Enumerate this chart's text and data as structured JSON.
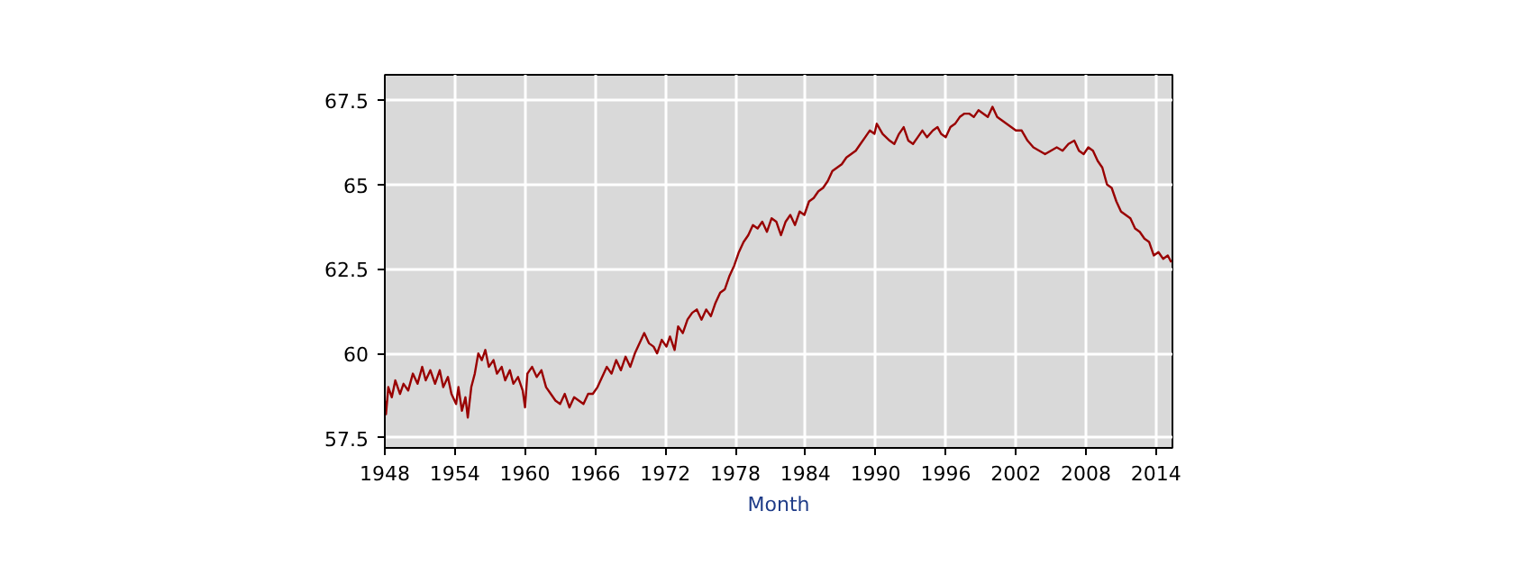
{
  "chart_data": {
    "type": "line",
    "xlabel": "Month",
    "xlim": [
      1948,
      2015.4
    ],
    "ylim": [
      57.2,
      68.25
    ],
    "xticks": [
      1948,
      1954,
      1960,
      1966,
      1972,
      1978,
      1984,
      1990,
      1996,
      2002,
      2008,
      2014
    ],
    "yticks": [
      57.5,
      60,
      62.5,
      65,
      67.5
    ],
    "grid": true,
    "marker": "none",
    "line_style": "solid",
    "x": [
      1948.0,
      1948.1,
      1948.3,
      1948.6,
      1948.9,
      1949.3,
      1949.6,
      1950.0,
      1950.4,
      1950.8,
      1951.2,
      1951.5,
      1951.9,
      1952.3,
      1952.7,
      1953.0,
      1953.4,
      1953.7,
      1954.1,
      1954.3,
      1954.6,
      1954.9,
      1955.1,
      1955.4,
      1955.7,
      1956.0,
      1956.3,
      1956.6,
      1956.9,
      1957.3,
      1957.6,
      1958.0,
      1958.3,
      1958.7,
      1959.0,
      1959.4,
      1959.8,
      1960.0,
      1960.2,
      1960.6,
      1961.0,
      1961.4,
      1961.8,
      1962.2,
      1962.6,
      1963.0,
      1963.4,
      1963.8,
      1964.2,
      1964.6,
      1965.0,
      1965.4,
      1965.8,
      1966.2,
      1966.6,
      1967.0,
      1967.4,
      1967.8,
      1968.2,
      1968.6,
      1969.0,
      1969.4,
      1969.8,
      1970.2,
      1970.6,
      1971.0,
      1971.3,
      1971.7,
      1972.1,
      1972.4,
      1972.8,
      1973.1,
      1973.5,
      1973.9,
      1974.3,
      1974.7,
      1975.1,
      1975.5,
      1975.9,
      1976.3,
      1976.7,
      1977.1,
      1977.5,
      1977.9,
      1978.3,
      1978.7,
      1979.1,
      1979.5,
      1979.9,
      1980.3,
      1980.7,
      1981.1,
      1981.5,
      1981.9,
      1982.3,
      1982.7,
      1983.1,
      1983.5,
      1983.9,
      1984.3,
      1984.7,
      1985.1,
      1985.5,
      1985.9,
      1986.3,
      1986.7,
      1987.1,
      1987.5,
      1987.9,
      1988.3,
      1988.7,
      1989.1,
      1989.5,
      1989.9,
      1990.1,
      1990.6,
      1991.2,
      1991.6,
      1992.0,
      1992.4,
      1992.8,
      1993.2,
      1993.6,
      1994.0,
      1994.4,
      1994.9,
      1995.3,
      1995.6,
      1996.0,
      1996.4,
      1996.8,
      1997.2,
      1997.6,
      1998.0,
      1998.4,
      1998.8,
      1999.2,
      1999.6,
      2000.0,
      2000.4,
      2000.8,
      2001.2,
      2001.6,
      2002.0,
      2002.5,
      2003.0,
      2003.5,
      2004.0,
      2004.5,
      2005.0,
      2005.5,
      2006.0,
      2006.5,
      2007.0,
      2007.4,
      2007.8,
      2008.2,
      2008.6,
      2009.0,
      2009.4,
      2009.8,
      2010.2,
      2010.6,
      2011.0,
      2011.4,
      2011.8,
      2012.2,
      2012.6,
      2013.0,
      2013.4,
      2013.8,
      2014.2,
      2014.6,
      2015.0,
      2015.3
    ],
    "series": [
      {
        "color": "#990000",
        "values": [
          58.6,
          58.2,
          59.0,
          58.7,
          59.2,
          58.8,
          59.1,
          58.9,
          59.4,
          59.1,
          59.6,
          59.2,
          59.5,
          59.1,
          59.5,
          59.0,
          59.3,
          58.8,
          58.5,
          59.0,
          58.3,
          58.7,
          58.1,
          59.0,
          59.4,
          60.0,
          59.8,
          60.1,
          59.6,
          59.8,
          59.4,
          59.6,
          59.2,
          59.5,
          59.1,
          59.3,
          58.9,
          58.4,
          59.4,
          59.6,
          59.3,
          59.5,
          59.0,
          58.8,
          58.6,
          58.5,
          58.8,
          58.4,
          58.7,
          58.6,
          58.5,
          58.8,
          58.8,
          59.0,
          59.3,
          59.6,
          59.4,
          59.8,
          59.5,
          59.9,
          59.6,
          60.0,
          60.3,
          60.6,
          60.3,
          60.2,
          60.0,
          60.4,
          60.2,
          60.5,
          60.1,
          60.8,
          60.6,
          61.0,
          61.2,
          61.3,
          61.0,
          61.3,
          61.1,
          61.5,
          61.8,
          61.9,
          62.3,
          62.6,
          63.0,
          63.3,
          63.5,
          63.8,
          63.7,
          63.9,
          63.6,
          64.0,
          63.9,
          63.5,
          63.9,
          64.1,
          63.8,
          64.2,
          64.1,
          64.5,
          64.6,
          64.8,
          64.9,
          65.1,
          65.4,
          65.5,
          65.6,
          65.8,
          65.9,
          66.0,
          66.2,
          66.4,
          66.6,
          66.5,
          66.8,
          66.5,
          66.3,
          66.2,
          66.5,
          66.7,
          66.3,
          66.2,
          66.4,
          66.6,
          66.4,
          66.6,
          66.7,
          66.5,
          66.4,
          66.7,
          66.8,
          67.0,
          67.1,
          67.1,
          67.0,
          67.2,
          67.1,
          67.0,
          67.3,
          67.0,
          66.9,
          66.8,
          66.7,
          66.6,
          66.6,
          66.3,
          66.1,
          66.0,
          65.9,
          66.0,
          66.1,
          66.0,
          66.2,
          66.3,
          66.0,
          65.9,
          66.1,
          66.0,
          65.7,
          65.5,
          65.0,
          64.9,
          64.5,
          64.2,
          64.1,
          64.0,
          63.7,
          63.6,
          63.4,
          63.3,
          62.9,
          63.0,
          62.8,
          62.9,
          62.7
        ]
      }
    ]
  }
}
